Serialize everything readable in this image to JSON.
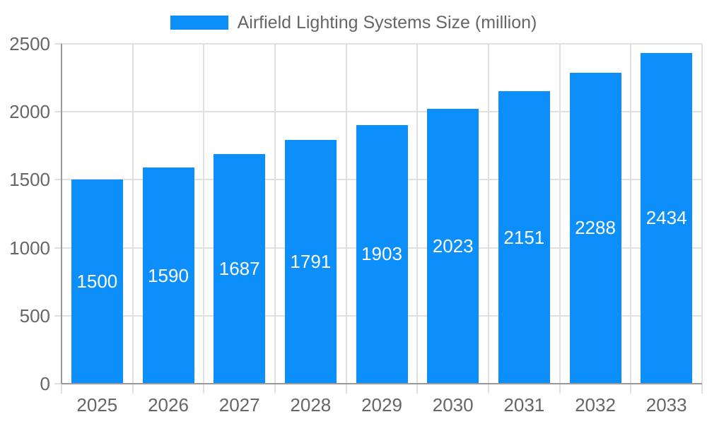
{
  "legend": {
    "label": "Airfield Lighting Systems Size (million)"
  },
  "chart_data": {
    "type": "bar",
    "title": "Airfield Lighting Systems Size (million)",
    "categories": [
      "2025",
      "2026",
      "2027",
      "2028",
      "2029",
      "2030",
      "2031",
      "2032",
      "2033"
    ],
    "values": [
      1500,
      1590,
      1687,
      1791,
      1903,
      2023,
      2151,
      2288,
      2434
    ],
    "series": [
      {
        "name": "Airfield Lighting Systems Size (million)",
        "values": [
          1500,
          1590,
          1687,
          1791,
          1903,
          2023,
          2151,
          2288,
          2434
        ]
      }
    ],
    "xlabel": "",
    "ylabel": "",
    "ylim": [
      0,
      2500
    ],
    "yticks": [
      0,
      500,
      1000,
      1500,
      2000,
      2500
    ],
    "grid": true,
    "legend_position": "top",
    "bar_value_labels_inside": true,
    "colors": {
      "bar": "#0C8FFA",
      "bar_label": "#FFFFFF",
      "axis_text": "#666666",
      "gridline": "#E0E0E0",
      "axis_line": "#999999",
      "background": "#FFFFFF"
    }
  }
}
